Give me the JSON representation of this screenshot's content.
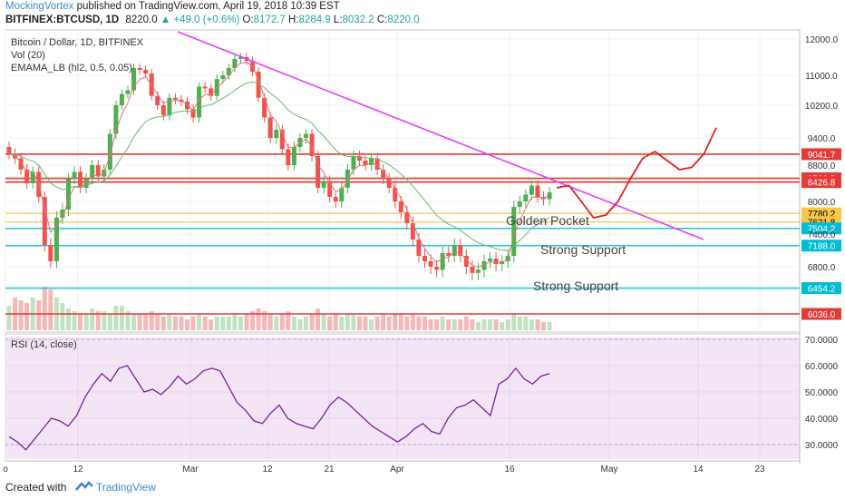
{
  "header": {
    "author": "MockingVortex",
    "published_text": "published on TradingView.com, April 19, 2018 10:39 EST",
    "symbol": "BITFINEX:BTCUSD, 1D",
    "last": "8220.0",
    "change": "▲ +49.0 (+0.6%)",
    "ohlc": [
      {
        "label": "O:",
        "value": "8172.7"
      },
      {
        "label": "H:",
        "value": "8284.9"
      },
      {
        "label": "L:",
        "value": "8032.2"
      },
      {
        "label": "C:",
        "value": "8220.0"
      }
    ]
  },
  "legend": {
    "title": "Bitcoin / Dollar, 1D, BITFINEX",
    "vol": "Vol (20)",
    "indicator": "EMAMA_LB (hl2, 0.5, 0.05)",
    "rsi": "RSI (14, close)"
  },
  "footer": {
    "created_with": "Created with",
    "brand": "TradingView"
  },
  "colors": {
    "up": "#4caf50",
    "down": "#ef5350",
    "trendline": "#e040fb",
    "forecast": "#e02020",
    "resistance": "#e53935",
    "support": "#26c6da",
    "golden": "#f5c242",
    "rsi_line": "#7b1fa2",
    "rsi_bg": "#f3e5f5"
  },
  "chart_data": {
    "type": "candlestick",
    "ylim": [
      6000,
      12200
    ],
    "x_ticks": [
      "o",
      "12",
      "Mar",
      "12",
      "21",
      "Apr",
      "16",
      "May",
      "14",
      "23"
    ],
    "y_ticks": [
      "12000.0",
      "11000.0",
      "10200.0",
      "9400.0",
      "8800.0",
      "8000.0",
      "7400.0",
      "6800.0"
    ],
    "price_levels": [
      {
        "value": 9041.7,
        "label": "9041.7",
        "kind": "resistance"
      },
      {
        "value": 8509.5,
        "label": "8509.5",
        "kind": "resistance"
      },
      {
        "value": 8426.8,
        "label": "8426.8",
        "kind": "resistance"
      },
      {
        "value": 7780.2,
        "label": "7780.2",
        "kind": "golden"
      },
      {
        "value": 7621.8,
        "label": "7621.8",
        "kind": "golden"
      },
      {
        "value": 7504.2,
        "label": "7504.2",
        "kind": "support"
      },
      {
        "value": 7188.0,
        "label": "7188.0",
        "kind": "support"
      },
      {
        "value": 6454.2,
        "label": "6454.2",
        "kind": "support"
      },
      {
        "value": 6036.0,
        "label": "6036.0",
        "kind": "resistance"
      }
    ],
    "annotations": [
      "Golden Pocket",
      "Strong Support",
      "Strong Support"
    ],
    "closes": [
      9050,
      8950,
      8700,
      8400,
      8650,
      8100,
      7200,
      6900,
      7700,
      7850,
      8500,
      8650,
      8300,
      8500,
      8800,
      8550,
      8700,
      9500,
      10200,
      10500,
      10600,
      11200,
      11150,
      11050,
      10450,
      10200,
      9950,
      10400,
      10350,
      10300,
      10100,
      9900,
      10700,
      10650,
      10450,
      10900,
      11000,
      11200,
      11450,
      11500,
      11400,
      11100,
      10400,
      9900,
      9400,
      9600,
      9150,
      8800,
      9200,
      9400,
      9500,
      9000,
      8300,
      8450,
      8100,
      8000,
      8300,
      8700,
      9000,
      8900,
      8800,
      8950,
      8700,
      8500,
      8300,
      8000,
      7800,
      7600,
      7300,
      7000,
      6900,
      6800,
      6750,
      7050,
      7000,
      7200,
      7000,
      6800,
      6700,
      6750,
      6900,
      6950,
      6850,
      6900,
      7000,
      7900,
      8000,
      8150,
      8350,
      8100,
      8050,
      8200
    ],
    "volume": [
      0.45,
      0.6,
      0.55,
      0.5,
      0.6,
      0.55,
      0.8,
      0.75,
      0.6,
      0.5,
      0.4,
      0.35,
      0.3,
      0.3,
      0.4,
      0.35,
      0.35,
      0.3,
      0.45,
      0.45,
      0.35,
      0.3,
      0.3,
      0.3,
      0.35,
      0.3,
      0.25,
      0.3,
      0.25,
      0.25,
      0.2,
      0.25,
      0.3,
      0.25,
      0.2,
      0.25,
      0.25,
      0.25,
      0.3,
      0.25,
      0.3,
      0.35,
      0.4,
      0.35,
      0.3,
      0.25,
      0.3,
      0.35,
      0.25,
      0.2,
      0.25,
      0.3,
      0.4,
      0.3,
      0.25,
      0.3,
      0.25,
      0.3,
      0.3,
      0.25,
      0.25,
      0.2,
      0.25,
      0.3,
      0.25,
      0.3,
      0.3,
      0.25,
      0.3,
      0.25,
      0.25,
      0.2,
      0.2,
      0.25,
      0.2,
      0.2,
      0.2,
      0.25,
      0.2,
      0.15,
      0.2,
      0.2,
      0.2,
      0.15,
      0.2,
      0.3,
      0.25,
      0.25,
      0.2,
      0.2,
      0.15,
      0.15
    ],
    "forecast_path": [
      8300,
      8350,
      8000,
      7700,
      7750,
      8000,
      8500,
      8950,
      9100,
      8900,
      8700,
      8750,
      9050,
      9650
    ],
    "rsi": {
      "ylim": [
        25,
        70
      ],
      "y_ticks": [
        "70.0000",
        "60.0000",
        "50.0000",
        "40.0000",
        "30.0000"
      ],
      "values": [
        33,
        31,
        28,
        32,
        36,
        40,
        39,
        37,
        41,
        48,
        53,
        57,
        54,
        59,
        60,
        55,
        50,
        51,
        49,
        52,
        56,
        53,
        55,
        58,
        59,
        58,
        52,
        46,
        43,
        39,
        38,
        42,
        45,
        40,
        38,
        37,
        36,
        40,
        45,
        48,
        46,
        43,
        40,
        37,
        35,
        33,
        31,
        33,
        36,
        38,
        35,
        34,
        40,
        44,
        45,
        47,
        44,
        41,
        53,
        55,
        59,
        55,
        53,
        56,
        57
      ]
    }
  }
}
